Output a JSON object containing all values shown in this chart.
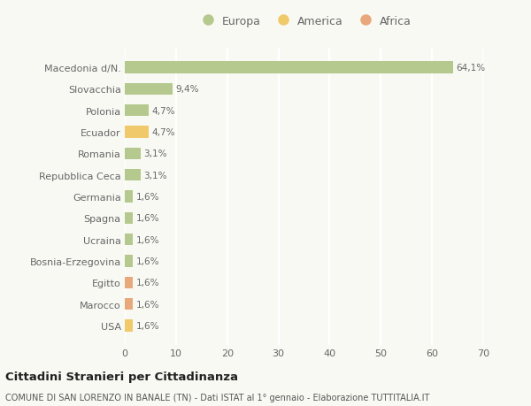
{
  "categories": [
    "Macedonia d/N.",
    "Slovacchia",
    "Polonia",
    "Ecuador",
    "Romania",
    "Repubblica Ceca",
    "Germania",
    "Spagna",
    "Ucraina",
    "Bosnia-Erzegovina",
    "Egitto",
    "Marocco",
    "USA"
  ],
  "values": [
    64.1,
    9.4,
    4.7,
    4.7,
    3.1,
    3.1,
    1.6,
    1.6,
    1.6,
    1.6,
    1.6,
    1.6,
    1.6
  ],
  "labels": [
    "64,1%",
    "9,4%",
    "4,7%",
    "4,7%",
    "3,1%",
    "3,1%",
    "1,6%",
    "1,6%",
    "1,6%",
    "1,6%",
    "1,6%",
    "1,6%",
    "1,6%"
  ],
  "colors": [
    "#b5c98e",
    "#b5c98e",
    "#b5c98e",
    "#f0c96a",
    "#b5c98e",
    "#b5c98e",
    "#b5c98e",
    "#b5c98e",
    "#b5c98e",
    "#b5c98e",
    "#e8a87c",
    "#e8a87c",
    "#f0c96a"
  ],
  "legend_labels": [
    "Europa",
    "America",
    "Africa"
  ],
  "legend_colors": [
    "#b5c98e",
    "#f0c96a",
    "#e8a87c"
  ],
  "xlim": [
    0,
    70
  ],
  "xticks": [
    0,
    10,
    20,
    30,
    40,
    50,
    60,
    70
  ],
  "title": "Cittadini Stranieri per Cittadinanza",
  "subtitle": "COMUNE DI SAN LORENZO IN BANALE (TN) - Dati ISTAT al 1° gennaio - Elaborazione TUTTITALIA.IT",
  "background_color": "#f9f9f4",
  "grid_color": "#ffffff",
  "bar_height": 0.55
}
